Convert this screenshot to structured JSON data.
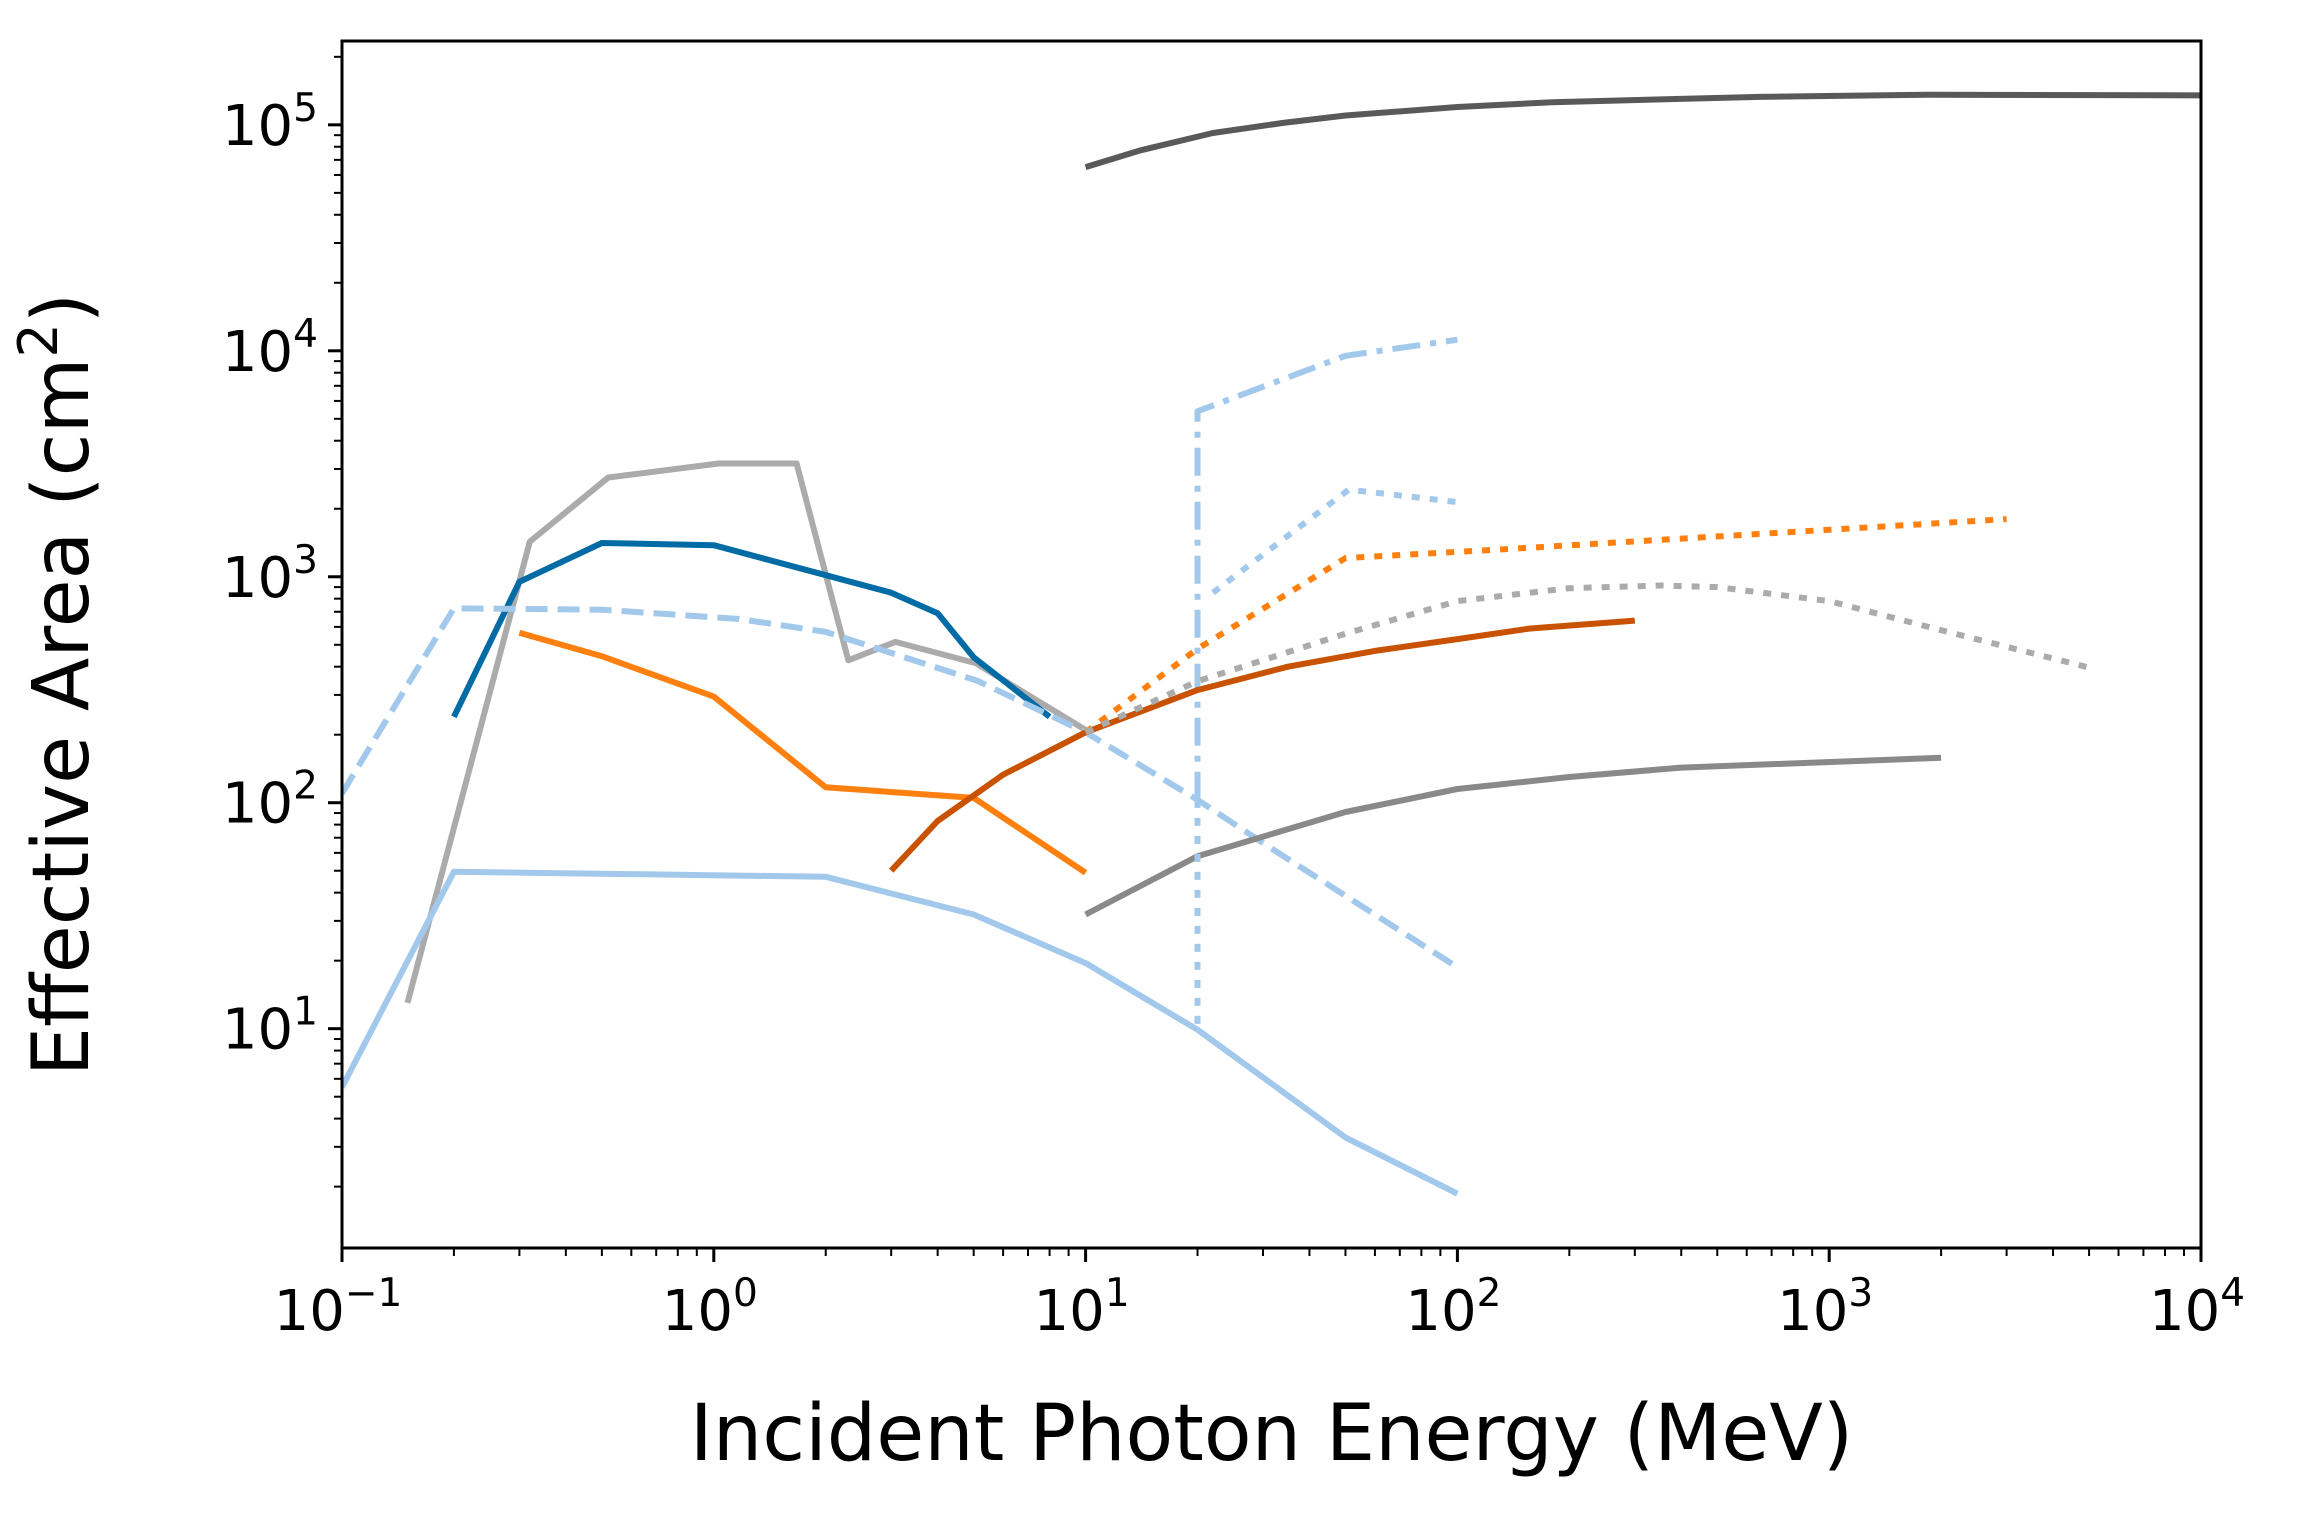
{
  "chart_data": {
    "type": "line",
    "title": "",
    "xlabel": "Incident Photon Energy (MeV)",
    "ylabel_main": "Effective Area (cm",
    "ylabel_sup": "2",
    "ylabel_end": ")",
    "xscale": "log",
    "yscale": "log",
    "xlim": [
      0.1,
      10000
    ],
    "ylim": [
      1.07,
      235000
    ],
    "grid": false,
    "legend": "none",
    "x_ticks": [
      {
        "value": 0.1,
        "base": "10",
        "exp": "−1"
      },
      {
        "value": 1,
        "base": "10",
        "exp": "0"
      },
      {
        "value": 10,
        "base": "10",
        "exp": "1"
      },
      {
        "value": 100,
        "base": "10",
        "exp": "2"
      },
      {
        "value": 1000,
        "base": "10",
        "exp": "3"
      },
      {
        "value": 10000,
        "base": "10",
        "exp": "4"
      }
    ],
    "y_ticks": [
      {
        "value": 10,
        "base": "10",
        "exp": "1"
      },
      {
        "value": 100,
        "base": "10",
        "exp": "2"
      },
      {
        "value": 1000,
        "base": "10",
        "exp": "3"
      },
      {
        "value": 10000,
        "base": "10",
        "exp": "4"
      },
      {
        "value": 100000,
        "base": "10",
        "exp": "5"
      }
    ],
    "series": [
      {
        "name": "dark-gray-solid",
        "color": "#595959",
        "style": "solid",
        "x": [
          10,
          14,
          22,
          34,
          50,
          100,
          180,
          650,
          1850,
          10000
        ],
        "y": [
          65000,
          77000,
          92000,
          102000,
          110000,
          120000,
          126000,
          133000,
          136000,
          135000
        ]
      },
      {
        "name": "light-blue-dashdot",
        "color": "#a2c8ec",
        "style": "dashdot",
        "x": [
          20,
          20,
          50,
          100
        ],
        "y": [
          103,
          5400,
          9500,
          11200
        ]
      },
      {
        "name": "light-gray-solid",
        "color": "#ababab",
        "style": "solid",
        "x": [
          0.15,
          0.32,
          0.52,
          1.03,
          1.67,
          2.3,
          3.08,
          5.06,
          10
        ],
        "y": [
          13,
          1430,
          2750,
          3170,
          3170,
          427,
          515,
          415,
          210
        ]
      },
      {
        "name": "blue-solid",
        "color": "#006ba4",
        "style": "solid",
        "x": [
          0.2,
          0.3,
          0.5,
          1.0,
          3.0,
          4.0,
          5.0,
          8.0
        ],
        "y": [
          240,
          950,
          1410,
          1380,
          850,
          690,
          440,
          240
        ]
      },
      {
        "name": "light-blue-dashed",
        "color": "#a2c8ec",
        "style": "dashed",
        "x": [
          0.1,
          0.2,
          0.5,
          1.17,
          2.0,
          5.1,
          10,
          20,
          31.5,
          100
        ],
        "y": [
          110,
          725,
          715,
          650,
          570,
          347,
          205,
          103,
          63,
          18.7
        ]
      },
      {
        "name": "orange-solid",
        "color": "#ff800e",
        "style": "solid",
        "x": [
          0.3,
          0.5,
          1.0,
          2.0,
          5.0,
          10
        ],
        "y": [
          565,
          445,
          295,
          117,
          105,
          49
        ]
      },
      {
        "name": "light-blue-solid",
        "color": "#a2c8ec",
        "style": "solid",
        "x": [
          0.1,
          0.2,
          2.0,
          5.0,
          10,
          20,
          50,
          100
        ],
        "y": [
          5.5,
          49.5,
          47,
          32,
          19.5,
          9.9,
          3.3,
          1.86
        ]
      },
      {
        "name": "dark-orange-solid",
        "color": "#c85200",
        "style": "solid",
        "x": [
          3.0,
          4.0,
          6.0,
          10,
          20,
          35,
          60,
          100,
          157,
          300
        ],
        "y": [
          50,
          83,
          133,
          205,
          315,
          400,
          470,
          530,
          590,
          640
        ]
      },
      {
        "name": "mid-gray-solid",
        "color": "#898989",
        "style": "solid",
        "x": [
          10,
          20,
          50,
          100,
          200,
          400,
          2000
        ],
        "y": [
          32,
          58,
          91,
          115,
          130,
          143,
          158
        ]
      },
      {
        "name": "light-blue-dotted-vertical",
        "color": "#a2c8ec",
        "style": "dotted",
        "x": [
          20,
          20
        ],
        "y": [
          10.5,
          103
        ]
      },
      {
        "name": "light-blue-dotted",
        "color": "#a2c8ec",
        "style": "dotted",
        "x": [
          22,
          51,
          100
        ],
        "y": [
          850,
          2430,
          2140
        ]
      },
      {
        "name": "orange-dotted",
        "color": "#ff800e",
        "style": "dotted",
        "x": [
          10,
          20,
          50,
          130,
          3000
        ],
        "y": [
          205,
          480,
          1210,
          1320,
          1800
        ]
      },
      {
        "name": "gray-dotted",
        "color": "#ababab",
        "style": "dotted",
        "x": [
          10,
          20,
          50,
          100,
          200,
          355,
          500,
          1000,
          2000,
          5200
        ],
        "y": [
          205,
          345,
          560,
          780,
          890,
          915,
          900,
          780,
          580,
          390
        ]
      }
    ]
  }
}
